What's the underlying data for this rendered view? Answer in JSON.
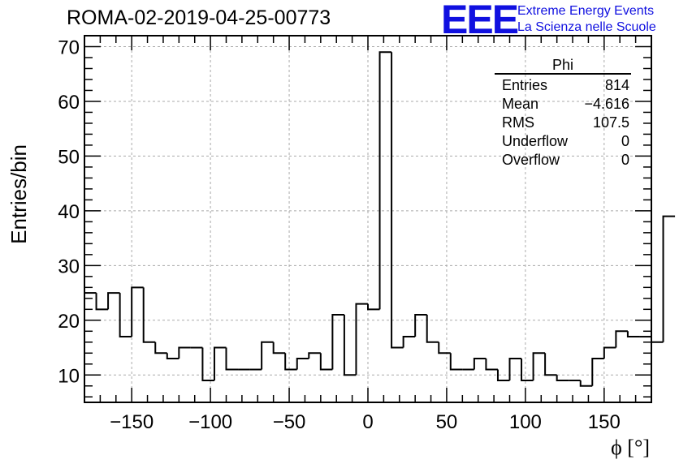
{
  "header": {
    "title": "ROMA-02-2019-04-25-00773",
    "logo_text": "EEE",
    "logo_line1": "Extreme Energy Events",
    "logo_line2": "La Scienza nelle Scuole"
  },
  "stats_box": {
    "name": "Phi",
    "rows": [
      {
        "label": "Entries",
        "value": "814"
      },
      {
        "label": "Mean",
        "value": "−4.616"
      },
      {
        "label": "RMS",
        "value": "107.5"
      },
      {
        "label": "Underflow",
        "value": "0"
      },
      {
        "label": "Overflow",
        "value": "0"
      }
    ]
  },
  "colors": {
    "logo": "#1010e0",
    "histogram": "#000000",
    "grid": "#aaaaaa"
  },
  "chart_data": {
    "type": "histogram",
    "xlabel": "ϕ [°]",
    "ylabel": "Entries/bin",
    "xlim": [
      -180,
      180
    ],
    "ylim": [
      5,
      72
    ],
    "grid": true,
    "bin_width": 7.5,
    "bin_edges_start": -180,
    "values": [
      25,
      22,
      25,
      17,
      26,
      16,
      14,
      13,
      15,
      15,
      9,
      15,
      11,
      11,
      11,
      16,
      14,
      11,
      13,
      14,
      11,
      21,
      10,
      23,
      22,
      69,
      15,
      17,
      21,
      16,
      14,
      11,
      11,
      13,
      11,
      9,
      13,
      9,
      14,
      10,
      9,
      9,
      8,
      13,
      15,
      18,
      17,
      17,
      16,
      39
    ],
    "x_ticks": [
      -150,
      -100,
      -50,
      0,
      50,
      100,
      150
    ],
    "x_tick_labels": [
      "−150",
      "−100",
      "−50",
      "0",
      "50",
      "100",
      "150"
    ],
    "y_ticks": [
      10,
      20,
      30,
      40,
      50,
      60,
      70
    ],
    "y_tick_labels": [
      "10",
      "20",
      "30",
      "40",
      "50",
      "60",
      "70"
    ]
  }
}
